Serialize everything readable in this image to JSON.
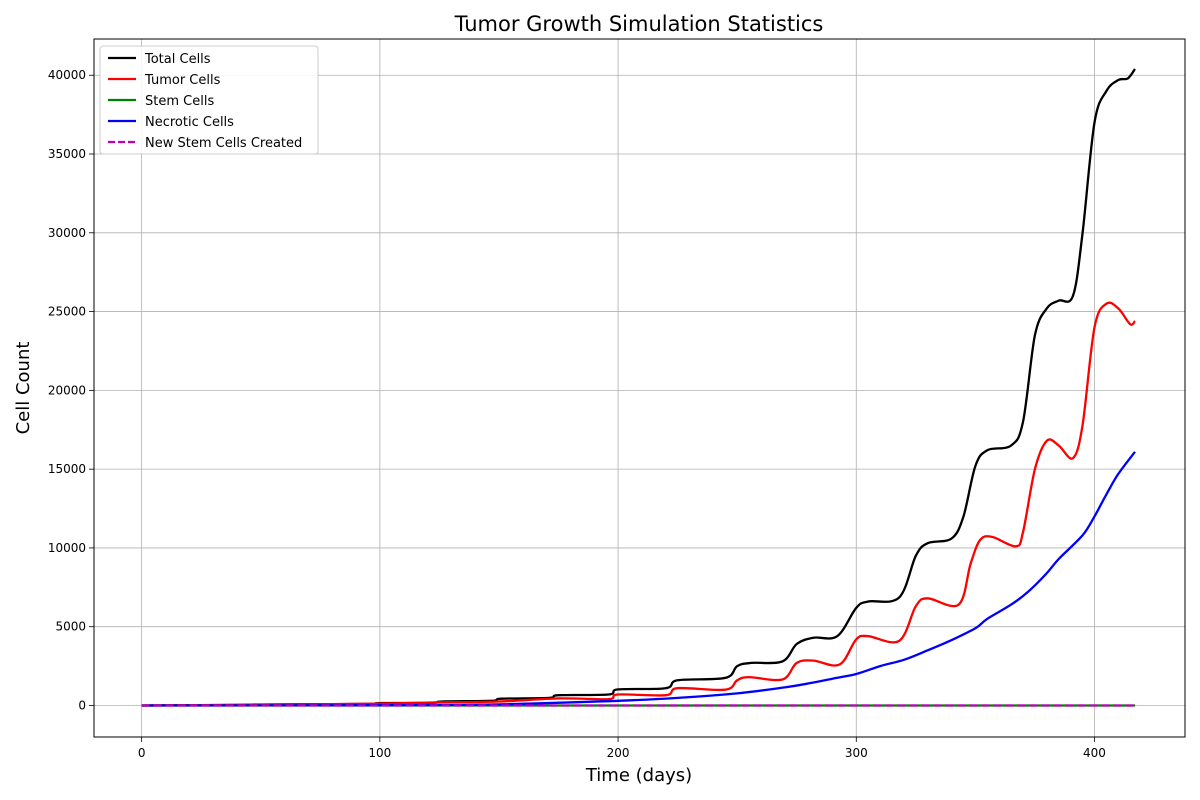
{
  "chart_data": {
    "type": "line",
    "title": "Tumor Growth Simulation Statistics",
    "xlabel": "Time (days)",
    "ylabel": "Cell Count",
    "xlim": [
      -20,
      438
    ],
    "ylim": [
      -2000,
      42300
    ],
    "xticks": [
      0,
      100,
      200,
      300,
      400
    ],
    "yticks": [
      0,
      5000,
      10000,
      15000,
      20000,
      25000,
      30000,
      35000,
      40000
    ],
    "grid": true,
    "legend_position": "upper-left",
    "series": [
      {
        "name": "Total Cells",
        "color": "#000000",
        "dash": "solid",
        "points": [
          [
            0,
            0
          ],
          [
            20,
            20
          ],
          [
            40,
            40
          ],
          [
            50,
            60
          ],
          [
            75,
            80
          ],
          [
            97,
            100
          ],
          [
            100,
            150
          ],
          [
            122,
            170
          ],
          [
            126,
            250
          ],
          [
            147,
            300
          ],
          [
            151,
            430
          ],
          [
            171,
            480
          ],
          [
            175,
            650
          ],
          [
            196,
            700
          ],
          [
            200,
            1020
          ],
          [
            220,
            1100
          ],
          [
            225,
            1600
          ],
          [
            245,
            1750
          ],
          [
            250,
            2500
          ],
          [
            256,
            2700
          ],
          [
            269,
            2800
          ],
          [
            275,
            3900
          ],
          [
            282,
            4300
          ],
          [
            292,
            4400
          ],
          [
            300,
            6200
          ],
          [
            305,
            6600
          ],
          [
            318,
            6850
          ],
          [
            325,
            9500
          ],
          [
            330,
            10300
          ],
          [
            340,
            10600
          ],
          [
            345,
            12000
          ],
          [
            350,
            15200
          ],
          [
            355,
            16200
          ],
          [
            365,
            16500
          ],
          [
            370,
            18000
          ],
          [
            375,
            23500
          ],
          [
            380,
            25200
          ],
          [
            385,
            25700
          ],
          [
            391,
            26000
          ],
          [
            395,
            30000
          ],
          [
            400,
            37000
          ],
          [
            405,
            39000
          ],
          [
            410,
            39700
          ],
          [
            414,
            39800
          ],
          [
            417,
            40400
          ]
        ]
      },
      {
        "name": "Tumor Cells",
        "color": "#ff0000",
        "dash": "solid",
        "points": [
          [
            0,
            0
          ],
          [
            50,
            50
          ],
          [
            100,
            120
          ],
          [
            125,
            200
          ],
          [
            150,
            250
          ],
          [
            175,
            450
          ],
          [
            196,
            400
          ],
          [
            200,
            700
          ],
          [
            220,
            650
          ],
          [
            225,
            1100
          ],
          [
            245,
            1000
          ],
          [
            250,
            1600
          ],
          [
            255,
            1800
          ],
          [
            269,
            1650
          ],
          [
            275,
            2700
          ],
          [
            282,
            2850
          ],
          [
            293,
            2600
          ],
          [
            300,
            4200
          ],
          [
            305,
            4400
          ],
          [
            318,
            4100
          ],
          [
            325,
            6300
          ],
          [
            330,
            6800
          ],
          [
            343,
            6400
          ],
          [
            348,
            9000
          ],
          [
            352,
            10500
          ],
          [
            357,
            10700
          ],
          [
            367,
            10100
          ],
          [
            370,
            11000
          ],
          [
            375,
            15000
          ],
          [
            380,
            16800
          ],
          [
            385,
            16500
          ],
          [
            391,
            15700
          ],
          [
            395,
            17800
          ],
          [
            400,
            24000
          ],
          [
            405,
            25500
          ],
          [
            410,
            25200
          ],
          [
            415,
            24200
          ],
          [
            417,
            24400
          ]
        ]
      },
      {
        "name": "Stem Cells",
        "color": "#008000",
        "dash": "solid",
        "points": [
          [
            0,
            0
          ],
          [
            417,
            0
          ]
        ]
      },
      {
        "name": "Necrotic Cells",
        "color": "#0000ff",
        "dash": "solid",
        "points": [
          [
            0,
            0
          ],
          [
            100,
            20
          ],
          [
            150,
            70
          ],
          [
            200,
            300
          ],
          [
            225,
            480
          ],
          [
            250,
            770
          ],
          [
            270,
            1150
          ],
          [
            280,
            1400
          ],
          [
            290,
            1700
          ],
          [
            300,
            2000
          ],
          [
            310,
            2500
          ],
          [
            320,
            2900
          ],
          [
            330,
            3500
          ],
          [
            340,
            4150
          ],
          [
            350,
            4900
          ],
          [
            355,
            5500
          ],
          [
            365,
            6400
          ],
          [
            372,
            7200
          ],
          [
            380,
            8400
          ],
          [
            385,
            9300
          ],
          [
            395,
            10800
          ],
          [
            400,
            12000
          ],
          [
            405,
            13400
          ],
          [
            410,
            14700
          ],
          [
            417,
            16100
          ]
        ]
      },
      {
        "name": "New Stem Cells Created",
        "color": "#bf00bf",
        "dash": "dashed",
        "points": [
          [
            0,
            0
          ],
          [
            417,
            0
          ]
        ]
      }
    ]
  }
}
